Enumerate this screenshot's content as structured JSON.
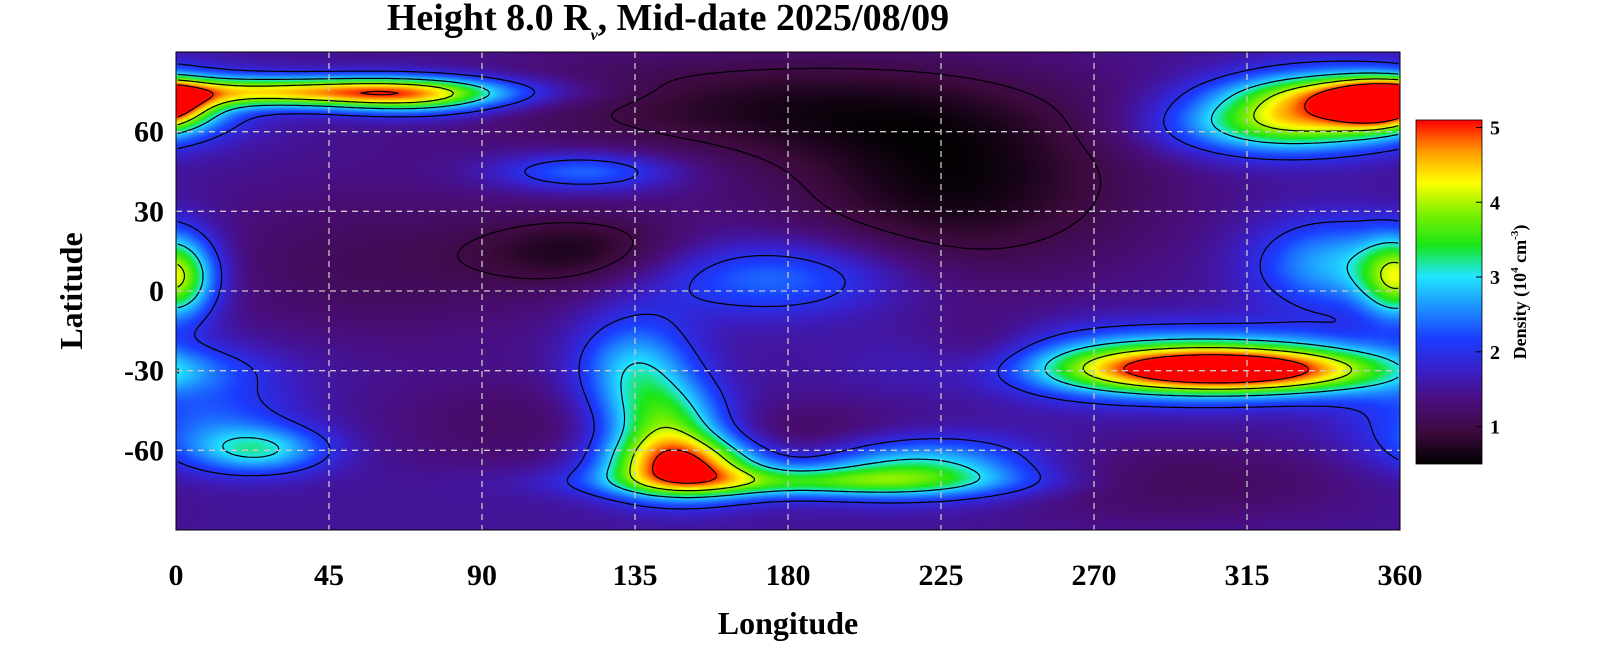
{
  "chart_data": {
    "type": "heatmap",
    "title": {
      "prefix": "Height 8.0 R",
      "subscript": "v",
      "suffix": ", Mid-date 2025/08/09"
    },
    "xlabel": "Longitude",
    "ylabel": "Latitude",
    "xlim": [
      0,
      360
    ],
    "ylim": [
      -90,
      90
    ],
    "x_ticks": [
      0,
      45,
      90,
      135,
      180,
      225,
      270,
      315,
      360
    ],
    "x_tick_labels": [
      "0",
      "45",
      "90",
      "135",
      "180",
      "225",
      "270",
      "315",
      "360"
    ],
    "y_ticks": [
      60,
      30,
      0,
      -30,
      -60
    ],
    "y_tick_labels": [
      "60",
      "30",
      "0",
      "-30",
      "-60"
    ],
    "grid": true,
    "colorbar": {
      "label_main": "Density (10",
      "label_exp1": "4",
      "label_mid": " cm",
      "label_exp2": "-3",
      "label_end": ")",
      "range": [
        0.5,
        5.1
      ],
      "ticks": [
        1,
        2,
        3,
        4,
        5
      ],
      "tick_labels": [
        "1",
        "2",
        "3",
        "4",
        "5"
      ],
      "colors": [
        "#000000",
        "#3d0a3d",
        "#4a0d7a",
        "#3a1fc8",
        "#1a3dff",
        "#1e90ff",
        "#20e6ff",
        "#19e619",
        "#7cf000",
        "#ffff00",
        "#ff9900",
        "#ff0000"
      ],
      "position": "right"
    },
    "background_density": 1.5,
    "features": [
      {
        "lon": 40,
        "lat": 75,
        "value": 4.3,
        "width": 38,
        "height": 4
      },
      {
        "lon": 70,
        "lat": 73,
        "value": 3.0,
        "width": 18,
        "height": 5
      },
      {
        "lon": 340,
        "lat": 70,
        "value": 4.0,
        "width": 22,
        "height": 9
      },
      {
        "lon": 320,
        "lat": 62,
        "value": 2.9,
        "width": 22,
        "height": 8
      },
      {
        "lon": 355,
        "lat": 70,
        "value": 4.2,
        "width": 10,
        "height": 6
      },
      {
        "lon": 340,
        "lat": 10,
        "value": 2.8,
        "width": 16,
        "height": 12
      },
      {
        "lon": 360,
        "lat": 5,
        "value": 2.7,
        "width": 8,
        "height": 10
      },
      {
        "lon": 0,
        "lat": 5,
        "value": 2.6,
        "width": 8,
        "height": 12
      },
      {
        "lon": 310,
        "lat": -30,
        "value": 4.6,
        "width": 32,
        "height": 6
      },
      {
        "lon": 295,
        "lat": -27,
        "value": 3.3,
        "width": 40,
        "height": 9
      },
      {
        "lon": 150,
        "lat": -66,
        "value": 4.5,
        "width": 16,
        "height": 8
      },
      {
        "lon": 145,
        "lat": -52,
        "value": 3.4,
        "width": 12,
        "height": 12
      },
      {
        "lon": 135,
        "lat": -30,
        "value": 2.9,
        "width": 12,
        "height": 14
      },
      {
        "lon": 215,
        "lat": -66,
        "value": 3.4,
        "width": 25,
        "height": 8
      },
      {
        "lon": 185,
        "lat": -72,
        "value": 3.0,
        "width": 40,
        "height": 4
      },
      {
        "lon": 175,
        "lat": 5,
        "value": 2.5,
        "width": 26,
        "height": 10
      },
      {
        "lon": 25,
        "lat": -60,
        "value": 2.8,
        "width": 14,
        "height": 6
      },
      {
        "lon": 10,
        "lat": -50,
        "value": 2.3,
        "width": 18,
        "height": 12
      },
      {
        "lon": 120,
        "lat": 45,
        "value": 2.5,
        "width": 18,
        "height": 5
      },
      {
        "lon": 230,
        "lat": 40,
        "value": 0.6,
        "width": 38,
        "height": 24
      },
      {
        "lon": 170,
        "lat": 70,
        "value": 0.8,
        "width": 55,
        "height": 14
      },
      {
        "lon": 120,
        "lat": 15,
        "value": 0.8,
        "width": 22,
        "height": 10
      },
      {
        "lon": 185,
        "lat": -60,
        "value": 0.8,
        "width": 28,
        "height": 10
      },
      {
        "lon": 240,
        "lat": -25,
        "value": 0.9,
        "width": 14,
        "height": 9
      },
      {
        "lon": 290,
        "lat": -72,
        "value": 1.1,
        "width": 40,
        "height": 10
      },
      {
        "lon": 60,
        "lat": 10,
        "value": 1.1,
        "width": 40,
        "height": 20
      },
      {
        "lon": 100,
        "lat": -50,
        "value": 1.2,
        "width": 28,
        "height": 12
      }
    ]
  }
}
